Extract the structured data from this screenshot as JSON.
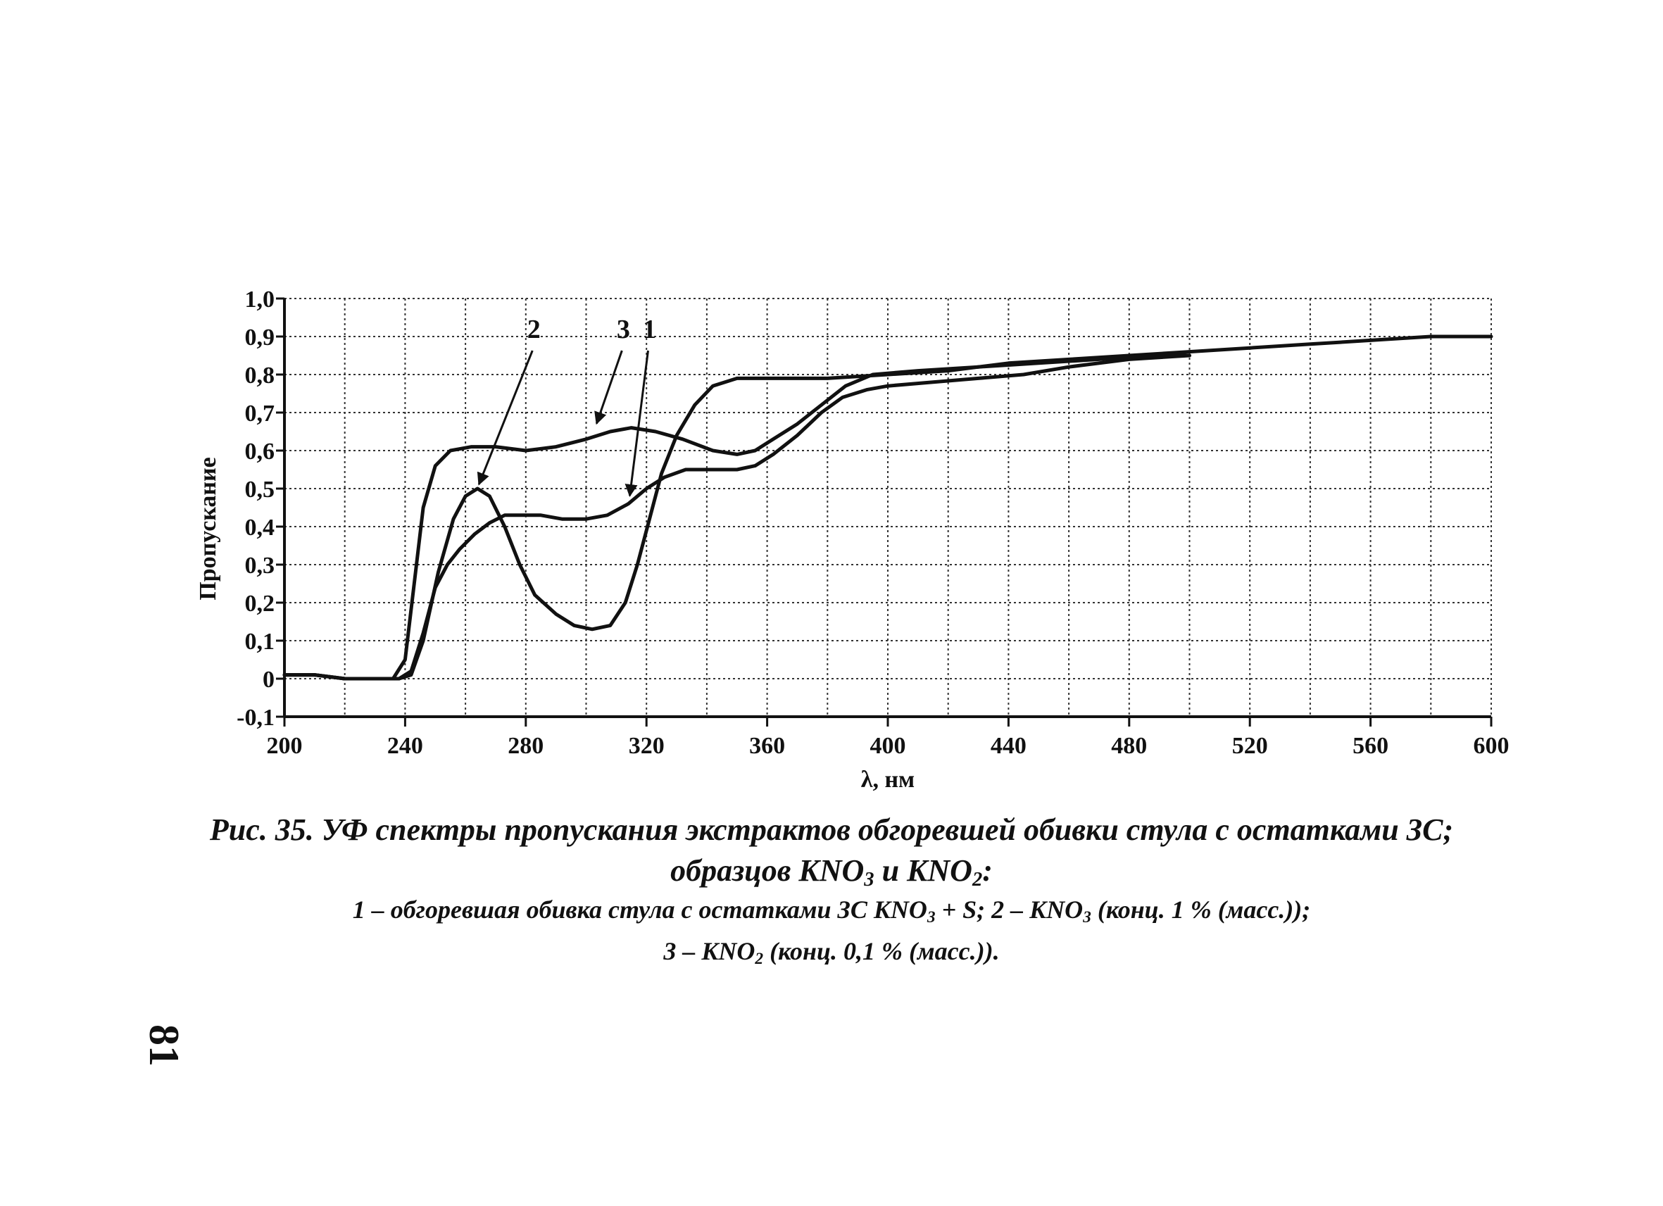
{
  "chart_data": {
    "type": "line",
    "xlabel": "λ, нм",
    "ylabel": "Пропускание",
    "xlim": [
      200,
      600
    ],
    "ylim": [
      -0.1,
      1.0
    ],
    "x_ticks": [
      "200",
      "240",
      "280",
      "320",
      "360",
      "400",
      "440",
      "480",
      "520",
      "560",
      "600"
    ],
    "y_ticks": [
      "-0,1",
      "0",
      "0,1",
      "0,2",
      "0,3",
      "0,4",
      "0,5",
      "0,6",
      "0,7",
      "0,8",
      "0,9",
      "1,0"
    ],
    "grid": true,
    "series": [
      {
        "name": "1",
        "points": [
          [
            200,
            0.01
          ],
          [
            210,
            0.01
          ],
          [
            220,
            0.0
          ],
          [
            230,
            0.0
          ],
          [
            235,
            0.0
          ],
          [
            238,
            0.0
          ],
          [
            242,
            0.02
          ],
          [
            246,
            0.12
          ],
          [
            250,
            0.24
          ],
          [
            254,
            0.3
          ],
          [
            258,
            0.34
          ],
          [
            263,
            0.38
          ],
          [
            268,
            0.41
          ],
          [
            273,
            0.43
          ],
          [
            278,
            0.43
          ],
          [
            285,
            0.43
          ],
          [
            292,
            0.42
          ],
          [
            300,
            0.42
          ],
          [
            307,
            0.43
          ],
          [
            314,
            0.46
          ],
          [
            320,
            0.5
          ],
          [
            326,
            0.53
          ],
          [
            333,
            0.55
          ],
          [
            340,
            0.55
          ],
          [
            350,
            0.55
          ],
          [
            356,
            0.56
          ],
          [
            362,
            0.59
          ],
          [
            370,
            0.64
          ],
          [
            378,
            0.7
          ],
          [
            385,
            0.74
          ],
          [
            393,
            0.76
          ],
          [
            400,
            0.77
          ],
          [
            415,
            0.78
          ],
          [
            430,
            0.79
          ],
          [
            445,
            0.8
          ],
          [
            460,
            0.82
          ],
          [
            480,
            0.84
          ],
          [
            500,
            0.85
          ]
        ]
      },
      {
        "name": "2",
        "points": [
          [
            200,
            0.01
          ],
          [
            210,
            0.01
          ],
          [
            220,
            0.0
          ],
          [
            230,
            0.0
          ],
          [
            238,
            0.0
          ],
          [
            242,
            0.01
          ],
          [
            246,
            0.1
          ],
          [
            251,
            0.28
          ],
          [
            256,
            0.42
          ],
          [
            260,
            0.48
          ],
          [
            264,
            0.5
          ],
          [
            268,
            0.48
          ],
          [
            273,
            0.4
          ],
          [
            278,
            0.3
          ],
          [
            283,
            0.22
          ],
          [
            290,
            0.17
          ],
          [
            296,
            0.14
          ],
          [
            302,
            0.13
          ],
          [
            308,
            0.14
          ],
          [
            313,
            0.2
          ],
          [
            317,
            0.3
          ],
          [
            321,
            0.42
          ],
          [
            325,
            0.54
          ],
          [
            330,
            0.64
          ],
          [
            336,
            0.72
          ],
          [
            342,
            0.77
          ],
          [
            350,
            0.79
          ],
          [
            360,
            0.79
          ],
          [
            380,
            0.79
          ],
          [
            400,
            0.8
          ],
          [
            420,
            0.81
          ],
          [
            440,
            0.83
          ],
          [
            460,
            0.84
          ],
          [
            480,
            0.85
          ],
          [
            500,
            0.86
          ],
          [
            520,
            0.87
          ],
          [
            540,
            0.88
          ],
          [
            560,
            0.89
          ],
          [
            580,
            0.9
          ],
          [
            600,
            0.9
          ]
        ]
      },
      {
        "name": "3",
        "points": [
          [
            200,
            0.01
          ],
          [
            210,
            0.01
          ],
          [
            220,
            0.0
          ],
          [
            230,
            0.0
          ],
          [
            236,
            0.0
          ],
          [
            240,
            0.05
          ],
          [
            243,
            0.25
          ],
          [
            246,
            0.45
          ],
          [
            250,
            0.56
          ],
          [
            255,
            0.6
          ],
          [
            262,
            0.61
          ],
          [
            270,
            0.61
          ],
          [
            280,
            0.6
          ],
          [
            290,
            0.61
          ],
          [
            300,
            0.63
          ],
          [
            308,
            0.65
          ],
          [
            315,
            0.66
          ],
          [
            323,
            0.65
          ],
          [
            332,
            0.63
          ],
          [
            342,
            0.6
          ],
          [
            350,
            0.59
          ],
          [
            356,
            0.6
          ],
          [
            362,
            0.63
          ],
          [
            370,
            0.67
          ],
          [
            378,
            0.72
          ],
          [
            386,
            0.77
          ],
          [
            395,
            0.8
          ],
          [
            410,
            0.81
          ],
          [
            430,
            0.82
          ],
          [
            450,
            0.83
          ],
          [
            470,
            0.84
          ],
          [
            490,
            0.85
          ],
          [
            500,
            0.85
          ]
        ]
      }
    ],
    "annotations": [
      {
        "text": "2",
        "target": [
          264,
          0.5
        ]
      },
      {
        "text": "3",
        "target": [
          303,
          0.66
        ]
      },
      {
        "text": "1",
        "target": [
          314,
          0.47
        ]
      }
    ]
  },
  "caption": {
    "title_line1": "Рис. 35. УФ спектры пропускания экстрактов обгоревшей обивки стула с остатками ЗС;",
    "title_line2_a": "образцов KNO",
    "title_line2_sub1": "3",
    "title_line2_b": " и KNO",
    "title_line2_sub2": "2",
    "title_line2_c": ":",
    "legend_line1_a": "1 – обгоревшая обивка стула с остатками ЗС KNO",
    "legend_line1_sub1": "3",
    "legend_line1_b": " + S; 2 – KNO",
    "legend_line1_sub2": "3",
    "legend_line1_c": " (конц. 1 % (масс.));",
    "legend_line2_a": "3 – KNO",
    "legend_line2_sub": "2",
    "legend_line2_b": " (конц. 0,1 % (масс.))."
  },
  "page_number": "81"
}
